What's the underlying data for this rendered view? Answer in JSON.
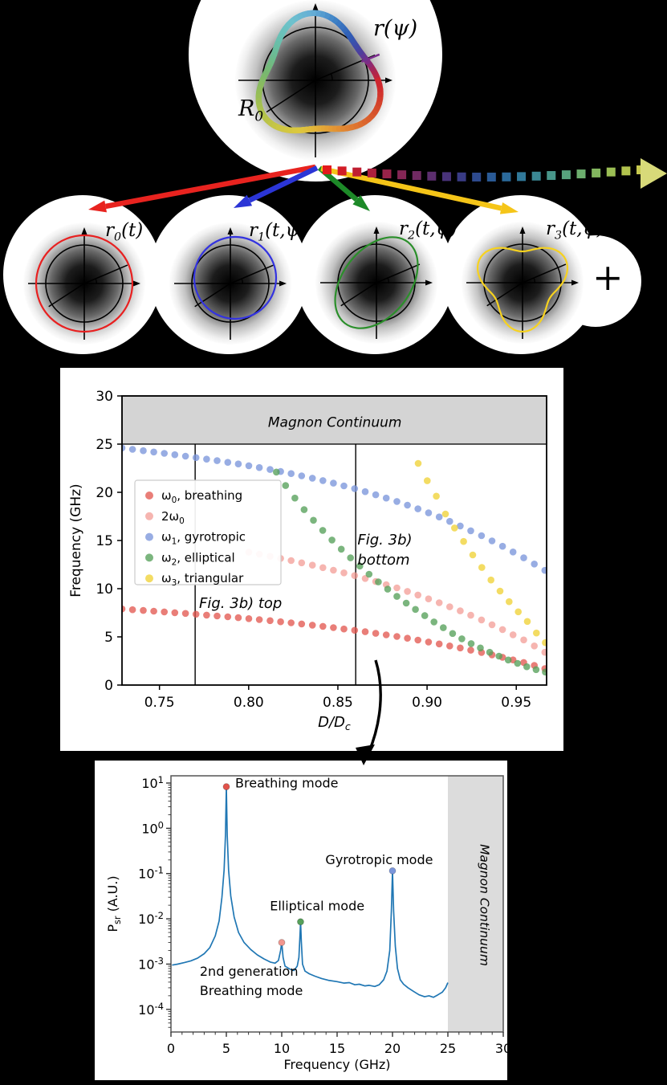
{
  "figure": {
    "background_color": "#000000",
    "panel_color": "#ffffff"
  },
  "top_diagram": {
    "label_r_psi": "r(ψ)",
    "label_R0": "R_{0}",
    "mode_labels": [
      "r_{0}(t)",
      "r_{1}(t,ψ)",
      "r_{2}(t,ψ)",
      "r_{3}(t,ψ)"
    ],
    "plus_sign": "+",
    "mode_overlay_colors": [
      "#e82020",
      "#3333e0",
      "#2a8f2a",
      "#f7d21e"
    ],
    "solid_arrow_colors": [
      "#e8231f",
      "#2b35d6",
      "#1d8a28",
      "#f5c518"
    ],
    "dashed_arrow_colors": [
      "#e31a1c",
      "#d21c26",
      "#c01e31",
      "#ad203d",
      "#992349",
      "#842655",
      "#702a62",
      "#5c2e6e",
      "#49337a",
      "#393b85",
      "#2e4a8e",
      "#2a5a96",
      "#2b6a9b",
      "#31799a",
      "#3b8894",
      "#48968a",
      "#58a37d",
      "#6cae6e",
      "#83b75f",
      "#9bbe54",
      "#b2c34e",
      "#c7c94e"
    ],
    "dashed_arrowhead_color": "#d8da79",
    "ring_color_stops": [
      [
        0,
        "#cd2430"
      ],
      [
        12,
        "#a82653"
      ],
      [
        22,
        "#7c2d86"
      ],
      [
        35,
        "#4b3f9e"
      ],
      [
        55,
        "#2f5cb5"
      ],
      [
        75,
        "#3f83c6"
      ],
      [
        95,
        "#66aed6"
      ],
      [
        115,
        "#6ec2cd"
      ],
      [
        135,
        "#69c0ae"
      ],
      [
        155,
        "#6cbb8e"
      ],
      [
        175,
        "#79b86e"
      ],
      [
        195,
        "#94bd57"
      ],
      [
        215,
        "#b1c24b"
      ],
      [
        235,
        "#ccc644"
      ],
      [
        255,
        "#ddc83e"
      ],
      [
        275,
        "#e3b039"
      ],
      [
        295,
        "#e39434"
      ],
      [
        315,
        "#de7230"
      ],
      [
        335,
        "#d64f2b"
      ],
      [
        352,
        "#d2302c"
      ],
      [
        360,
        "#cd2430"
      ]
    ]
  },
  "chart_data": [
    {
      "type": "scatter",
      "title": "",
      "xlabel": "D/D_{c}",
      "ylabel": "Frequency (GHz)",
      "xlim": [
        0.729,
        0.967
      ],
      "ylim": [
        0,
        30
      ],
      "xticks": [
        "0.75",
        "0.80",
        "0.85",
        "0.90",
        "0.95"
      ],
      "xtick_values": [
        0.75,
        0.8,
        0.85,
        0.9,
        0.95
      ],
      "yticks": [
        0,
        5,
        10,
        15,
        20,
        25,
        30
      ],
      "grid": false,
      "band": {
        "label": "Magnon Continuum",
        "from": 25,
        "to": 30,
        "color": "#d4d4d4"
      },
      "vlines": [
        0.77,
        0.86
      ],
      "annotations": [
        {
          "text": "Magnon Continuum",
          "x": 0.8483,
          "y": 26.8,
          "ha": "center",
          "italic": true,
          "size": 17
        },
        {
          "text": "Fig. 3b) top",
          "x": 0.7722,
          "y": 8.0,
          "ha": "left",
          "italic": true,
          "size": 18
        },
        {
          "text": "Fig. 3b)\nbottom",
          "x": 0.861,
          "y": 14.6,
          "ha": "left",
          "italic": true,
          "size": 18
        }
      ],
      "legend_position": "upper left area",
      "series": [
        {
          "name": "ω_{0}, breathing",
          "color": "#e2534b",
          "opacity": 0.75,
          "x": [
            0.729,
            0.7349,
            0.7409,
            0.7468,
            0.7527,
            0.7586,
            0.7646,
            0.7705,
            0.7764,
            0.7823,
            0.7883,
            0.7942,
            0.8001,
            0.806,
            0.812,
            0.8179,
            0.8238,
            0.8297,
            0.8357,
            0.8416,
            0.8475,
            0.8534,
            0.8594,
            0.8653,
            0.8712,
            0.8771,
            0.8831,
            0.889,
            0.8949,
            0.9008,
            0.9068,
            0.9127,
            0.9186,
            0.9245,
            0.9305,
            0.9364,
            0.9423,
            0.9482,
            0.9542,
            0.9601,
            0.966
          ],
          "y": [
            7.9,
            7.82,
            7.74,
            7.67,
            7.59,
            7.51,
            7.43,
            7.35,
            7.26,
            7.17,
            7.08,
            6.99,
            6.89,
            6.79,
            6.68,
            6.57,
            6.46,
            6.34,
            6.22,
            6.09,
            5.96,
            5.82,
            5.68,
            5.53,
            5.37,
            5.21,
            5.04,
            4.86,
            4.67,
            4.47,
            4.27,
            4.06,
            3.85,
            3.62,
            3.38,
            3.13,
            2.88,
            2.61,
            2.34,
            2.03,
            1.7
          ]
        },
        {
          "name": "2ω_{0}",
          "color": "#f2968e",
          "opacity": 0.7,
          "x": [
            0.8001,
            0.806,
            0.812,
            0.8179,
            0.8238,
            0.8297,
            0.8357,
            0.8416,
            0.8475,
            0.8534,
            0.8594,
            0.8653,
            0.8712,
            0.8771,
            0.8831,
            0.889,
            0.8949,
            0.9008,
            0.9068,
            0.9127,
            0.9186,
            0.9245,
            0.9305,
            0.9364,
            0.9423,
            0.9482,
            0.9542,
            0.9601,
            0.966
          ],
          "y": [
            13.78,
            13.58,
            13.36,
            13.14,
            12.92,
            12.68,
            12.44,
            12.18,
            11.92,
            11.64,
            11.36,
            11.06,
            10.74,
            10.42,
            10.08,
            9.72,
            9.34,
            8.94,
            8.54,
            8.12,
            7.7,
            7.24,
            6.76,
            6.26,
            5.76,
            5.22,
            4.68,
            4.06,
            3.4
          ]
        },
        {
          "name": "ω_{1}, gyrotropic",
          "color": "#7b96db",
          "opacity": 0.78,
          "x": [
            0.729,
            0.7349,
            0.7409,
            0.7468,
            0.7527,
            0.7586,
            0.7646,
            0.7705,
            0.7764,
            0.7823,
            0.7883,
            0.7942,
            0.8001,
            0.806,
            0.812,
            0.8179,
            0.8238,
            0.8297,
            0.8357,
            0.8416,
            0.8475,
            0.8534,
            0.8594,
            0.8653,
            0.8712,
            0.8771,
            0.8831,
            0.889,
            0.8949,
            0.9008,
            0.9068,
            0.9127,
            0.9186,
            0.9245,
            0.9305,
            0.9364,
            0.9423,
            0.9482,
            0.9542,
            0.9601,
            0.966
          ],
          "y": [
            24.6,
            24.46,
            24.32,
            24.18,
            24.04,
            23.9,
            23.75,
            23.6,
            23.44,
            23.28,
            23.11,
            22.94,
            22.76,
            22.57,
            22.37,
            22.16,
            21.94,
            21.71,
            21.47,
            21.22,
            20.95,
            20.67,
            20.38,
            20.07,
            19.74,
            19.4,
            19.05,
            18.67,
            18.28,
            17.87,
            17.44,
            16.98,
            16.51,
            16.01,
            15.5,
            14.96,
            14.4,
            13.81,
            13.2,
            12.56,
            11.9
          ]
        },
        {
          "name": "ω_{2}, elliptical",
          "color": "#56a05a",
          "opacity": 0.78,
          "x": [
            0.8155,
            0.8207,
            0.8259,
            0.8311,
            0.8363,
            0.8415,
            0.8467,
            0.8519,
            0.8571,
            0.8623,
            0.8675,
            0.8727,
            0.8779,
            0.8831,
            0.8883,
            0.8935,
            0.8987,
            0.9039,
            0.9091,
            0.9143,
            0.9195,
            0.9247,
            0.9299,
            0.9351,
            0.9403,
            0.9455,
            0.9507,
            0.9559,
            0.9611,
            0.9663
          ],
          "y": [
            22.1,
            20.7,
            19.4,
            18.2,
            17.1,
            16.05,
            15.05,
            14.1,
            13.2,
            12.35,
            11.5,
            10.7,
            9.95,
            9.2,
            8.5,
            7.85,
            7.2,
            6.55,
            5.95,
            5.35,
            4.8,
            4.3,
            3.85,
            3.4,
            3.0,
            2.6,
            2.25,
            1.9,
            1.6,
            1.35
          ]
        },
        {
          "name": "ω_{3}, triangular",
          "color": "#f0d33c",
          "opacity": 0.8,
          "x": [
            0.895,
            0.9001,
            0.9052,
            0.9103,
            0.9154,
            0.9205,
            0.9256,
            0.9307,
            0.9358,
            0.9409,
            0.946,
            0.9511,
            0.9562,
            0.9613,
            0.9663
          ],
          "y": [
            23.0,
            21.2,
            19.6,
            17.75,
            16.3,
            14.9,
            13.5,
            12.2,
            10.9,
            9.75,
            8.65,
            7.6,
            6.6,
            5.4,
            4.4
          ]
        }
      ]
    },
    {
      "type": "line",
      "title": "",
      "xlabel": "Frequency (GHz)",
      "ylabel": "P_{sr} (A.U.)",
      "xlim": [
        0,
        30
      ],
      "ylog_range": [
        -4.5,
        1.16
      ],
      "xticks": [
        0,
        5,
        10,
        15,
        20,
        25,
        30
      ],
      "yticks": [
        {
          "log": 1,
          "label": "10^{1}"
        },
        {
          "log": 0,
          "label": "10^{0}"
        },
        {
          "log": -1,
          "label": "10^{-1}"
        },
        {
          "log": -2,
          "label": "10^{-2}"
        },
        {
          "log": -3,
          "label": "10^{-3}"
        },
        {
          "log": -4,
          "label": "10^{-4}"
        }
      ],
      "band": {
        "label": "Magnon Continuum",
        "from": 25,
        "to": 30,
        "color": "#dcdcdc"
      },
      "line_color": "#2077b4",
      "x": [
        0.1,
        0.6,
        1.2,
        1.8,
        2.4,
        3.0,
        3.5,
        4.0,
        4.35,
        4.6,
        4.8,
        4.92,
        5.0,
        5.08,
        5.2,
        5.4,
        5.7,
        6.1,
        6.6,
        7.2,
        7.8,
        8.4,
        9.0,
        9.4,
        9.7,
        9.9,
        10.0,
        10.12,
        10.3,
        10.7,
        11.1,
        11.4,
        11.55,
        11.63,
        11.7,
        11.77,
        11.88,
        12.1,
        12.5,
        13.0,
        13.6,
        14.2,
        15.0,
        15.6,
        16.1,
        16.6,
        17.0,
        17.5,
        17.9,
        18.4,
        18.8,
        19.2,
        19.5,
        19.75,
        19.9,
        20.0,
        20.1,
        20.25,
        20.45,
        20.7,
        21.0,
        21.4,
        21.9,
        22.4,
        22.9,
        23.3,
        23.7,
        24.1,
        24.5,
        24.8,
        25.0
      ],
      "y": [
        0.00095,
        0.001,
        0.00108,
        0.00118,
        0.00135,
        0.0017,
        0.0023,
        0.0042,
        0.009,
        0.03,
        0.12,
        0.7,
        8.3,
        0.7,
        0.12,
        0.032,
        0.011,
        0.005,
        0.003,
        0.0021,
        0.0016,
        0.0013,
        0.0011,
        0.00105,
        0.0012,
        0.002,
        0.003,
        0.0014,
        0.0009,
        0.00078,
        0.00072,
        0.0009,
        0.0014,
        0.0035,
        0.0086,
        0.0032,
        0.001,
        0.0007,
        0.00061,
        0.00054,
        0.00048,
        0.00044,
        0.00041,
        0.00038,
        0.00039,
        0.00035,
        0.00036,
        0.00033,
        0.00034,
        0.00032,
        0.00035,
        0.00045,
        0.0007,
        0.002,
        0.015,
        0.115,
        0.015,
        0.0025,
        0.0008,
        0.00045,
        0.00036,
        0.0003,
        0.00025,
        0.00021,
        0.00019,
        0.0002,
        0.000185,
        0.00021,
        0.00024,
        0.0003,
        0.00039
      ],
      "markers": [
        {
          "label": "breathing peak",
          "x": 5.0,
          "y": 8.3,
          "color": "#e2534b"
        },
        {
          "label": "2nd generation breathing peak",
          "x": 10.0,
          "y": 0.003,
          "color": "#f2968e"
        },
        {
          "label": "elliptical peak",
          "x": 11.7,
          "y": 0.0086,
          "color": "#56a05a"
        },
        {
          "label": "gyrotropic peak",
          "x": 20.0,
          "y": 0.115,
          "color": "#7b96db"
        }
      ],
      "annotations": [
        {
          "text": "Breathing mode",
          "x": 5.8,
          "y": 8.0,
          "ha": "left",
          "size": 16
        },
        {
          "text": "Gyrotropic mode",
          "x": 18.8,
          "y": 0.16,
          "ha": "center",
          "size": 16
        },
        {
          "text": "Elliptical mode",
          "x": 13.2,
          "y": 0.0155,
          "ha": "center",
          "size": 16
        },
        {
          "text": "2nd generation\nBreathing mode",
          "x": 2.6,
          "y": 0.00055,
          "ha": "left",
          "size": 16
        }
      ]
    }
  ]
}
